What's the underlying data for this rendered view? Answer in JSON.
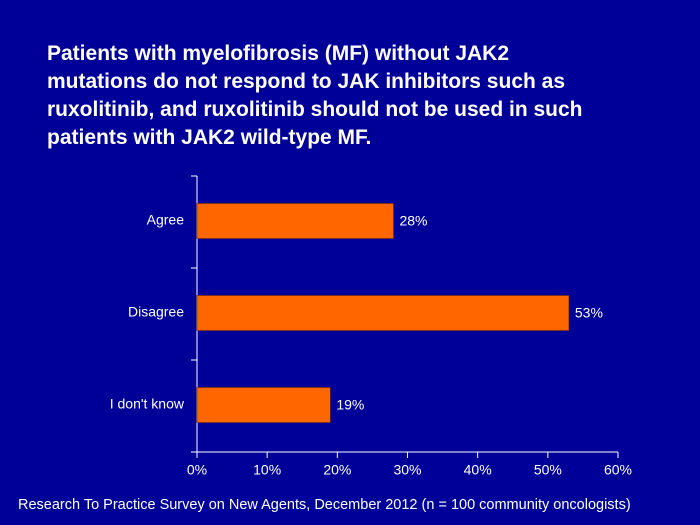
{
  "chart_data": {
    "type": "hbar",
    "title": "Patients with myelofibrosis (MF) without JAK2\nmutations do not respond to JAK inhibitors such as\nruxolitinib, and ruxolitinib should not be used in such\npatients with JAK2 wild-type MF.",
    "categories": [
      "Agree",
      "Disagree",
      "I don't know"
    ],
    "values": [
      28,
      53,
      19
    ],
    "value_labels": [
      "28%",
      "53%",
      "19%"
    ],
    "color": "#ff6600",
    "xlim": [
      0,
      60
    ],
    "xticks": [
      {
        "value": 0,
        "label": "0%"
      },
      {
        "value": 10,
        "label": "10%"
      },
      {
        "value": 20,
        "label": "20%"
      },
      {
        "value": 30,
        "label": "30%"
      },
      {
        "value": 40,
        "label": "40%"
      },
      {
        "value": 50,
        "label": "50%"
      },
      {
        "value": 60,
        "label": "60%"
      }
    ],
    "grid": false,
    "footnote": "Research To Practice Survey on New Agents, December 2012 (n = 100 community oncologists)"
  }
}
